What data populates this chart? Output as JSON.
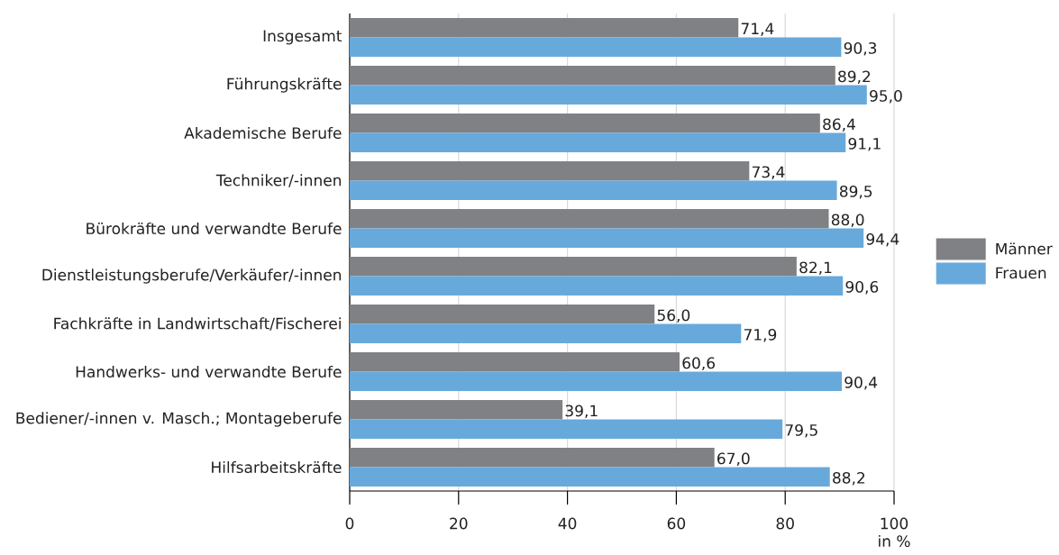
{
  "chart_data": {
    "type": "bar",
    "orientation": "horizontal",
    "categories": [
      "Insgesamt",
      "Führungskräfte",
      "Akademische Berufe",
      "Techniker/-innen",
      "Bürokräfte und verwandte Berufe",
      "Dienstleistungsberufe/Verkäufer/-innen",
      "Fachkräfte in Landwirtschaft/Fischerei",
      "Handwerks- und verwandte Berufe",
      "Bediener/-innen v. Masch.; Montageberufe",
      "Hilfsarbeitskräfte"
    ],
    "series": [
      {
        "name": "Männer",
        "color": "#808184",
        "values": [
          71.4,
          89.2,
          86.4,
          73.4,
          88.0,
          82.1,
          56.0,
          60.6,
          39.1,
          67.0
        ],
        "value_labels": [
          "71,4",
          "89,2",
          "86,4",
          "73,4",
          "88,0",
          "82,1",
          "56,0",
          "60,6",
          "39,1",
          "67,0"
        ]
      },
      {
        "name": "Frauen",
        "color": "#68a9dc",
        "values": [
          90.3,
          95.0,
          91.1,
          89.5,
          94.4,
          90.6,
          71.9,
          90.4,
          79.5,
          88.2
        ],
        "value_labels": [
          "90,3",
          "95,0",
          "91,1",
          "89,5",
          "94,4",
          "90,6",
          "71,9",
          "90,4",
          "79,5",
          "88,2"
        ]
      }
    ],
    "xlabel": "in %",
    "xlim": [
      0,
      100
    ],
    "xticks": [
      0,
      20,
      40,
      60,
      80,
      100
    ],
    "grid": "x",
    "legend": "right"
  }
}
